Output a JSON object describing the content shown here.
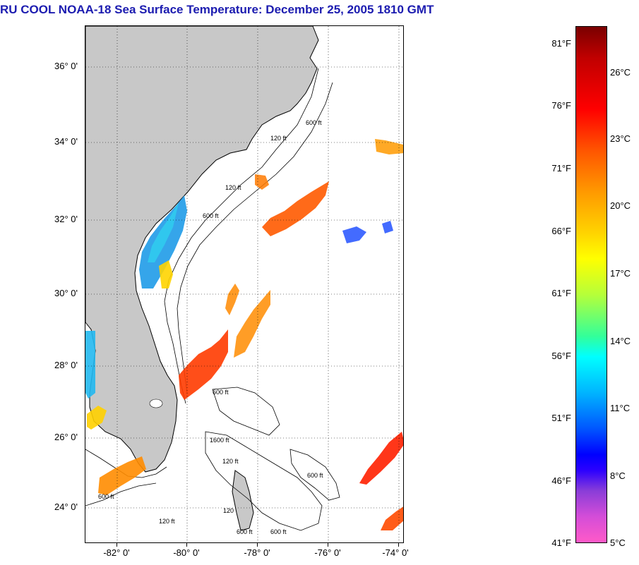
{
  "title": "RU COOL  NOAA-18  Sea Surface Temperature:  December 25, 2005 1810 GMT",
  "map": {
    "lat_labels": [
      "36° 0'",
      "34° 0'",
      "32° 0'",
      "30° 0'",
      "28° 0'",
      "26° 0'",
      "24° 0'"
    ],
    "lon_labels": [
      "-82° 0'",
      "-80° 0'",
      "-78° 0'",
      "-76° 0'",
      "-74° 0'"
    ],
    "contour_labels": [
      "120 ft",
      "600 ft",
      "120 ft",
      "600 ft",
      "600 ft",
      "1600 ft",
      "120 ft",
      "600 ft",
      "120 ft",
      "600 ft",
      "120",
      "600 ft",
      "600 ft"
    ],
    "land_color": "#c8c8c8",
    "ocean_color": "#ffffff"
  },
  "colorbar": {
    "fahrenheit": [
      "81°F",
      "76°F",
      "71°F",
      "66°F",
      "61°F",
      "56°F",
      "51°F",
      "46°F",
      "41°F"
    ],
    "celsius": [
      "26°C",
      "23°C",
      "20°C",
      "17°C",
      "14°C",
      "11°C",
      "8°C",
      "5°C"
    ]
  }
}
